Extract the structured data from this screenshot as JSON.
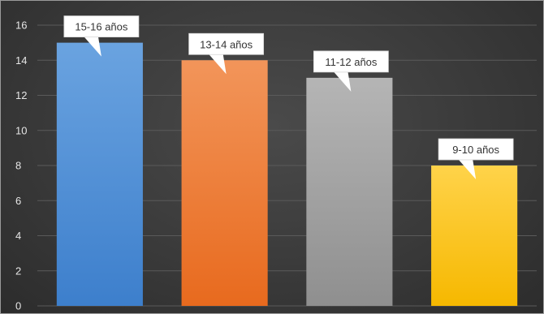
{
  "chart_data": {
    "type": "bar",
    "categories": [
      "15-16 años",
      "13-14 años",
      "11-12 años",
      "9-10 años"
    ],
    "values": [
      15,
      14,
      13,
      8
    ],
    "ylim": [
      0,
      16
    ],
    "yticks": [
      0,
      2,
      4,
      6,
      8,
      10,
      12,
      14,
      16
    ],
    "grid": true,
    "data_labels": [
      "15-16 años",
      "13-14 años",
      "11-12 años",
      "9-10 años"
    ],
    "colors": [
      {
        "top": "#6aa3e0",
        "bottom": "#3d7fcc"
      },
      {
        "top": "#f2955a",
        "bottom": "#e86a1e"
      },
      {
        "top": "#b5b5b5",
        "bottom": "#8f8f8f"
      },
      {
        "top": "#ffd34a",
        "bottom": "#f6b800"
      }
    ],
    "background": "#3a3a3a"
  }
}
